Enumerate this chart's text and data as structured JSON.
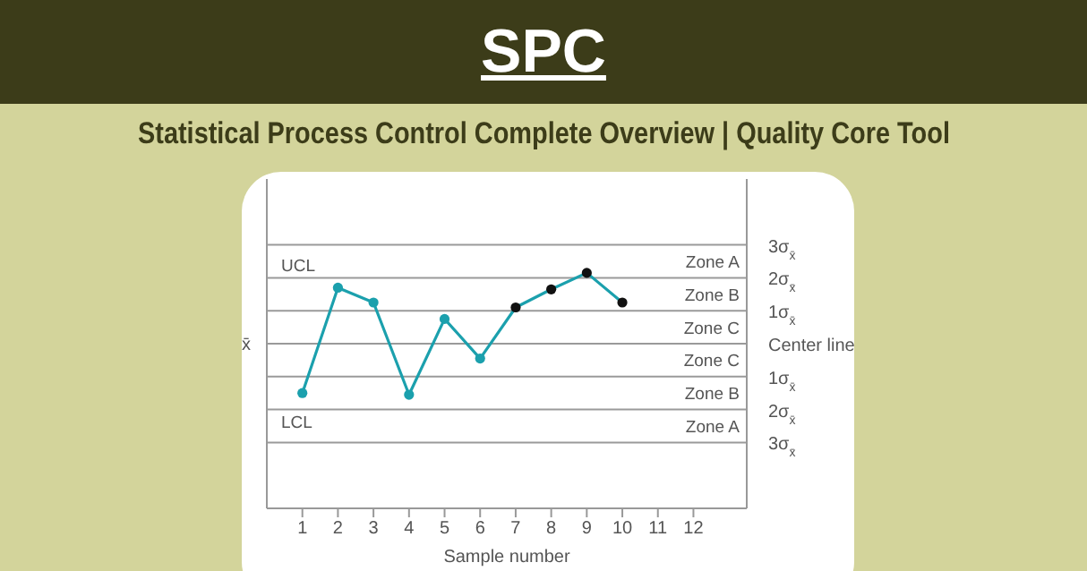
{
  "chart_data": {
    "type": "line",
    "title": "SPC",
    "subtitle": "Statistical Process Control Complete Overview | Quality Core Tool",
    "xlabel": "Sample number",
    "ylabel": "x̄",
    "x": [
      1,
      2,
      3,
      4,
      5,
      6,
      7,
      8,
      9,
      10
    ],
    "series": [
      {
        "color": "#1ba0ad",
        "colors": [
          "#1ba0ad",
          "#1ba0ad",
          "#1ba0ad",
          "#1ba0ad",
          "#1ba0ad",
          "#1ba0ad",
          "#111111",
          "#111111",
          "#111111",
          "#111111"
        ],
        "values": [
          -1.5,
          1.7,
          1.25,
          -1.55,
          0.75,
          -0.45,
          1.1,
          1.65,
          2.15,
          1.25
        ]
      }
    ],
    "marker": "circle",
    "line_style": "solid",
    "xlim": [
      0,
      13.5
    ],
    "xticks": [
      1,
      2,
      3,
      4,
      5,
      6,
      7,
      8,
      9,
      10,
      11,
      12
    ],
    "ylim": [
      -5,
      5
    ],
    "yticks": [
      {
        "value": 3,
        "label": "3σ$_{x̄}$"
      },
      {
        "value": 2,
        "label": "2σ$_{x̄}$"
      },
      {
        "value": 1,
        "label": "1σ$_{x̄}$"
      },
      {
        "value": 0,
        "label": "Center line"
      },
      {
        "value": -1,
        "label": "1σ$_{x̄}$"
      },
      {
        "value": -2,
        "label": "2σ$_{x̄}$"
      },
      {
        "value": -3,
        "label": "3σ$_{x̄}$"
      }
    ],
    "ref_lines": [
      {
        "axis": "y",
        "value": 3,
        "label": "UCL",
        "color": "#9a9a9a"
      },
      {
        "axis": "y",
        "value": 2,
        "color": "#9a9a9a"
      },
      {
        "axis": "y",
        "value": 1,
        "color": "#9a9a9a"
      },
      {
        "axis": "y",
        "value": 0,
        "color": "#9a9a9a"
      },
      {
        "axis": "y",
        "value": -1,
        "color": "#9a9a9a"
      },
      {
        "axis": "y",
        "value": -2,
        "color": "#9a9a9a"
      },
      {
        "axis": "y",
        "value": -3,
        "label": "LCL",
        "color": "#9a9a9a"
      }
    ],
    "annotations": [
      "Zone A",
      "Zone B",
      "Zone C",
      "Zone C",
      "Zone B",
      "Zone A"
    ]
  }
}
